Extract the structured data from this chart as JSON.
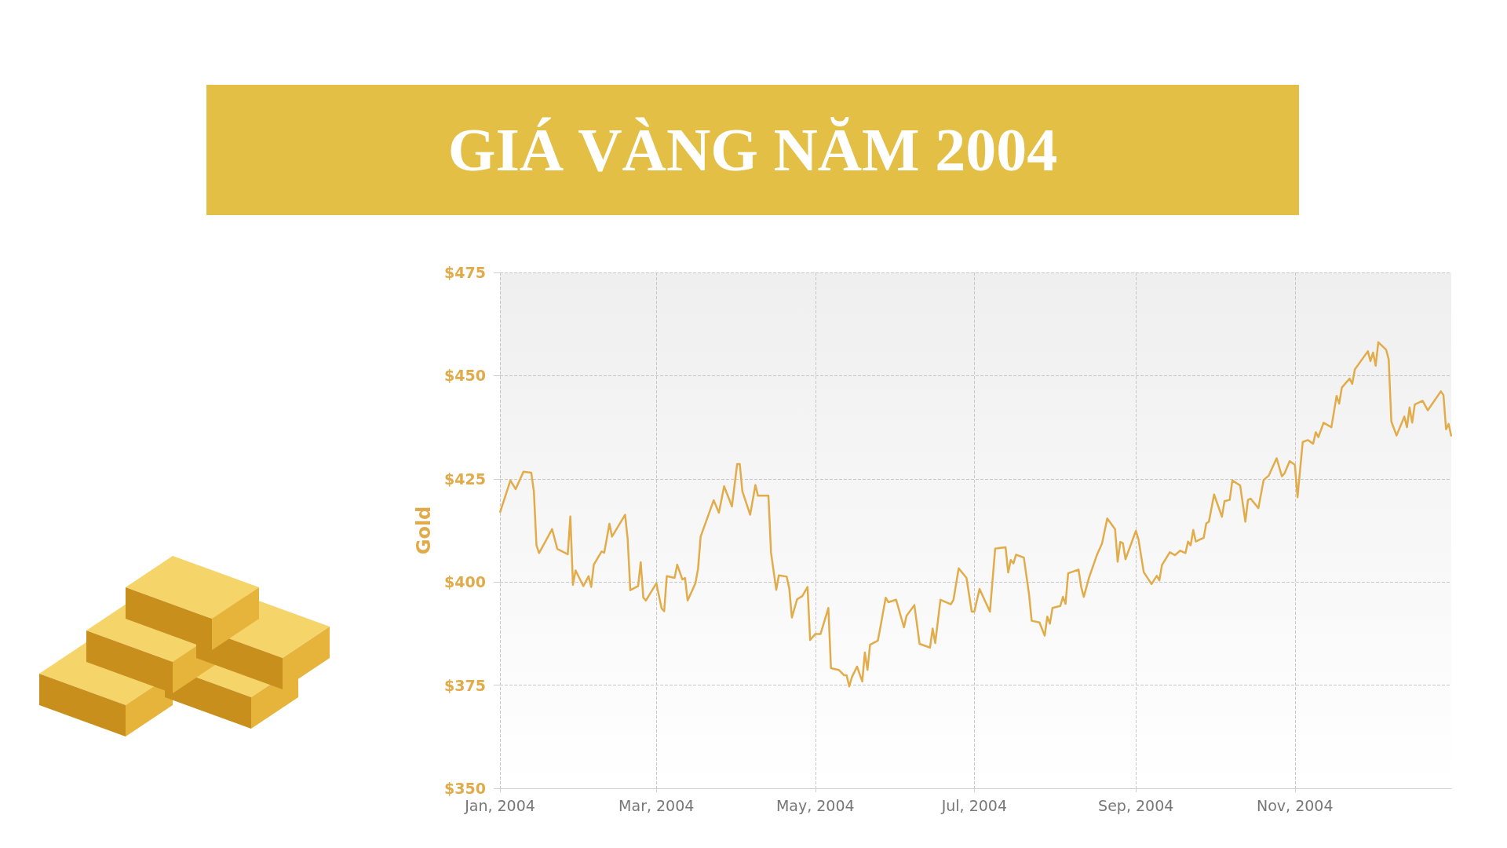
{
  "chart_data": {
    "type": "line",
    "title": "GIÁ VÀNG NĂM 2004",
    "ylabel": "Gold",
    "x": [
      "2004-01-01",
      "2004-01-05",
      "2004-01-07",
      "2004-01-10",
      "2004-01-13",
      "2004-01-14",
      "2004-01-15",
      "2004-01-16",
      "2004-01-21",
      "2004-01-23",
      "2004-01-27",
      "2004-01-28",
      "2004-01-29",
      "2004-01-30",
      "2004-02-02",
      "2004-02-04",
      "2004-02-05",
      "2004-02-06",
      "2004-02-09",
      "2004-02-10",
      "2004-02-12",
      "2004-02-13",
      "2004-02-18",
      "2004-02-19",
      "2004-02-20",
      "2004-02-23",
      "2004-02-24",
      "2004-02-25",
      "2004-02-26",
      "2004-03-01",
      "2004-03-03",
      "2004-03-04",
      "2004-03-05",
      "2004-03-08",
      "2004-03-09",
      "2004-03-11",
      "2004-03-12",
      "2004-03-13",
      "2004-03-16",
      "2004-03-17",
      "2004-03-18",
      "2004-03-23",
      "2004-03-25",
      "2004-03-27",
      "2004-03-30",
      "2004-04-01",
      "2004-04-02",
      "2004-04-03",
      "2004-04-06",
      "2004-04-08",
      "2004-04-09",
      "2004-04-13",
      "2004-04-14",
      "2004-04-16",
      "2004-04-17",
      "2004-04-20",
      "2004-04-21",
      "2004-04-22",
      "2004-04-24",
      "2004-04-26",
      "2004-04-28",
      "2004-04-29",
      "2004-05-01",
      "2004-05-03",
      "2004-05-06",
      "2004-05-07",
      "2004-05-10",
      "2004-05-12",
      "2004-05-13",
      "2004-05-14",
      "2004-05-15",
      "2004-05-17",
      "2004-05-19",
      "2004-05-20",
      "2004-05-21",
      "2004-05-22",
      "2004-05-25",
      "2004-05-26",
      "2004-05-28",
      "2004-05-29",
      "2004-06-01",
      "2004-06-04",
      "2004-06-05",
      "2004-06-08",
      "2004-06-10",
      "2004-06-14",
      "2004-06-15",
      "2004-06-16",
      "2004-06-18",
      "2004-06-22",
      "2004-06-23",
      "2004-06-25",
      "2004-06-28",
      "2004-06-30",
      "2004-07-01",
      "2004-07-03",
      "2004-07-07",
      "2004-07-09",
      "2004-07-13",
      "2004-07-14",
      "2004-07-15",
      "2004-07-16",
      "2004-07-17",
      "2004-07-20",
      "2004-07-22",
      "2004-07-23",
      "2004-07-26",
      "2004-07-28",
      "2004-07-29",
      "2004-07-30",
      "2004-07-31",
      "2004-08-03",
      "2004-08-04",
      "2004-08-05",
      "2004-08-06",
      "2004-08-10",
      "2004-08-11",
      "2004-08-12",
      "2004-08-14",
      "2004-08-17",
      "2004-08-19",
      "2004-08-21",
      "2004-08-24",
      "2004-08-25",
      "2004-08-26",
      "2004-08-27",
      "2004-08-28",
      "2004-09-01",
      "2004-09-02",
      "2004-09-04",
      "2004-09-07",
      "2004-09-09",
      "2004-09-10",
      "2004-09-11",
      "2004-09-14",
      "2004-09-16",
      "2004-09-18",
      "2004-09-20",
      "2004-09-21",
      "2004-09-22",
      "2004-09-23",
      "2004-09-24",
      "2004-09-27",
      "2004-09-28",
      "2004-09-29",
      "2004-10-01",
      "2004-10-04",
      "2004-10-05",
      "2004-10-07",
      "2004-10-08",
      "2004-10-11",
      "2004-10-13",
      "2004-10-14",
      "2004-10-15",
      "2004-10-18",
      "2004-10-20",
      "2004-10-22",
      "2004-10-25",
      "2004-10-27",
      "2004-10-28",
      "2004-10-30",
      "2004-11-01",
      "2004-11-02",
      "2004-11-04",
      "2004-11-06",
      "2004-11-08",
      "2004-11-09",
      "2004-11-10",
      "2004-11-12",
      "2004-11-15",
      "2004-11-17",
      "2004-11-18",
      "2004-11-19",
      "2004-11-22",
      "2004-11-23",
      "2004-11-24",
      "2004-11-29",
      "2004-11-30",
      "2004-12-01",
      "2004-12-02",
      "2004-12-03",
      "2004-12-06",
      "2004-12-07",
      "2004-12-08",
      "2004-12-10",
      "2004-12-13",
      "2004-12-14",
      "2004-12-15",
      "2004-12-16",
      "2004-12-17",
      "2004-12-20",
      "2004-12-22",
      "2004-12-27",
      "2004-12-28",
      "2004-12-29",
      "2004-12-30",
      "2004-12-31"
    ],
    "series": [
      {
        "color": "#e2ac4a",
        "values": [
          416.8,
          424.6,
          422.5,
          426.7,
          426.5,
          422,
          408.9,
          407,
          412.8,
          408,
          406.7,
          415.9,
          399.3,
          402.8,
          399,
          401.4,
          398.8,
          404.2,
          407.4,
          407.1,
          414.1,
          411,
          416.3,
          410.4,
          398,
          399,
          404.8,
          396.2,
          395.5,
          399.7,
          393.6,
          392.9,
          401.4,
          401,
          404.2,
          400.6,
          401,
          395.5,
          399.7,
          403.2,
          411,
          419.8,
          416.8,
          423.2,
          418.3,
          428.6,
          428.6,
          422,
          416.3,
          423.5,
          420.9,
          420.9,
          407.1,
          398.1,
          401.6,
          401.3,
          398.4,
          391.4,
          395.8,
          396.6,
          398.8,
          385.9,
          387.4,
          387.4,
          393.7,
          379.1,
          378.7,
          377.4,
          377.4,
          374.7,
          376.9,
          379.5,
          375.9,
          382.9,
          378.7,
          384.8,
          385.8,
          389.2,
          396.2,
          395.1,
          395.7,
          389,
          391.8,
          394.4,
          385,
          384.1,
          388.7,
          385.2,
          395.7,
          394.6,
          395.7,
          403.3,
          401,
          392.8,
          392.8,
          398.3,
          392.8,
          408.1,
          408.4,
          402.3,
          405.3,
          404.5,
          406.6,
          405.9,
          397,
          390.6,
          390.2,
          387,
          391.6,
          389.9,
          393.7,
          394.2,
          396.4,
          394.7,
          402.1,
          403,
          398.8,
          396.4,
          401,
          406.5,
          409.3,
          415.4,
          412.8,
          404.9,
          409.7,
          409.4,
          405.5,
          412.4,
          410.3,
          402.4,
          399.5,
          401.5,
          400.4,
          404.1,
          407.2,
          406.5,
          407.6,
          407,
          409.8,
          408.9,
          412.6,
          409.8,
          410.7,
          414.2,
          414.6,
          421.2,
          415.8,
          419.6,
          419.9,
          424.6,
          423.4,
          414.6,
          419.9,
          420.2,
          417.9,
          424.7,
          425.8,
          430,
          425.6,
          426.3,
          429.3,
          428.4,
          420.5,
          433.9,
          434.4,
          433.5,
          436.3,
          435.1,
          438.6,
          437.5,
          445.1,
          443.2,
          447.1,
          449.3,
          448,
          451.5,
          455.9,
          453.5,
          455.6,
          452.4,
          458.1,
          456.3,
          453.9,
          438.9,
          435.5,
          440.1,
          437.5,
          442.3,
          438.6,
          443,
          443.9,
          441.6,
          446.2,
          445.3,
          437,
          438.3,
          435.3
        ]
      }
    ],
    "xlim": [
      "2004-01-01",
      "2004-12-31"
    ],
    "xticks": [
      {
        "value": "2004-01-01",
        "label": "Jan, 2004"
      },
      {
        "value": "2004-03-01",
        "label": "Mar, 2004"
      },
      {
        "value": "2004-05-01",
        "label": "May, 2004"
      },
      {
        "value": "2004-07-01",
        "label": "Jul, 2004"
      },
      {
        "value": "2004-09-01",
        "label": "Sep, 2004"
      },
      {
        "value": "2004-11-01",
        "label": "Nov, 2004"
      }
    ],
    "ylim": [
      350,
      475
    ],
    "yticks": [
      {
        "value": 350,
        "label": "$350"
      },
      {
        "value": 375,
        "label": "$375"
      },
      {
        "value": 400,
        "label": "$400"
      },
      {
        "value": 425,
        "label": "$425"
      },
      {
        "value": 450,
        "label": "$450"
      },
      {
        "value": 475,
        "label": "$475"
      }
    ],
    "grid": true,
    "marker": "none",
    "line_style": "solid"
  }
}
